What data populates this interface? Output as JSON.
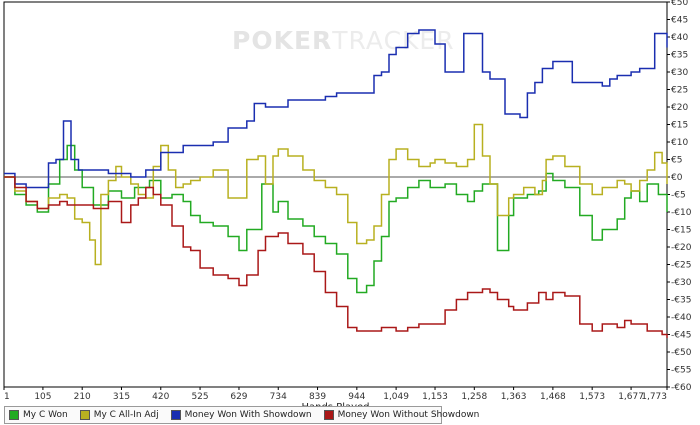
{
  "watermark": {
    "part1": "POKER",
    "part2": "TRACKER"
  },
  "chart_data": {
    "type": "line",
    "xlabel": "Hands Played",
    "ylabel": "",
    "x_ticks": [
      "1",
      "105",
      "210",
      "315",
      "420",
      "525",
      "629",
      "734",
      "839",
      "944",
      "1,049",
      "1,153",
      "1,258",
      "1,363",
      "1,468",
      "1,573",
      "1,677",
      "1,773"
    ],
    "xlim": [
      1,
      1773
    ],
    "ylim": [
      -60,
      50
    ],
    "y_tick_step": 5,
    "y_tick_prefix": "€",
    "zero_line": true,
    "grid": false,
    "legend_position": "bottom",
    "series": [
      {
        "name": "My C Won",
        "color": "#22aa22",
        "points": [
          [
            1,
            0
          ],
          [
            30,
            -5
          ],
          [
            60,
            -8
          ],
          [
            90,
            -10
          ],
          [
            120,
            -2
          ],
          [
            150,
            5
          ],
          [
            170,
            9
          ],
          [
            190,
            2
          ],
          [
            210,
            -3
          ],
          [
            240,
            -8
          ],
          [
            280,
            -4
          ],
          [
            315,
            -6
          ],
          [
            350,
            -3
          ],
          [
            390,
            -1
          ],
          [
            420,
            -6
          ],
          [
            450,
            -5
          ],
          [
            480,
            -7
          ],
          [
            500,
            -11
          ],
          [
            525,
            -13
          ],
          [
            560,
            -14
          ],
          [
            600,
            -17
          ],
          [
            629,
            -21
          ],
          [
            650,
            -15
          ],
          [
            690,
            -2
          ],
          [
            720,
            -10
          ],
          [
            734,
            -7
          ],
          [
            760,
            -12
          ],
          [
            800,
            -14
          ],
          [
            830,
            -17
          ],
          [
            860,
            -19
          ],
          [
            890,
            -22
          ],
          [
            920,
            -29
          ],
          [
            944,
            -33
          ],
          [
            970,
            -31
          ],
          [
            990,
            -24
          ],
          [
            1010,
            -17
          ],
          [
            1030,
            -7
          ],
          [
            1049,
            -6
          ],
          [
            1080,
            -3
          ],
          [
            1110,
            -1
          ],
          [
            1140,
            -3
          ],
          [
            1153,
            -3
          ],
          [
            1180,
            -2
          ],
          [
            1210,
            -5
          ],
          [
            1240,
            -7
          ],
          [
            1258,
            -4
          ],
          [
            1280,
            -2
          ],
          [
            1300,
            -2
          ],
          [
            1320,
            -21
          ],
          [
            1350,
            -11
          ],
          [
            1363,
            -6
          ],
          [
            1400,
            -5
          ],
          [
            1430,
            -4
          ],
          [
            1450,
            1
          ],
          [
            1468,
            -1
          ],
          [
            1500,
            -3
          ],
          [
            1540,
            -11
          ],
          [
            1573,
            -18
          ],
          [
            1600,
            -15
          ],
          [
            1640,
            -12
          ],
          [
            1660,
            -6
          ],
          [
            1677,
            -4
          ],
          [
            1700,
            -7
          ],
          [
            1720,
            -2
          ],
          [
            1750,
            -5
          ],
          [
            1773,
            -10
          ]
        ]
      },
      {
        "name": "My C All-In Adj",
        "color": "#b8b020",
        "points": [
          [
            1,
            0
          ],
          [
            30,
            -4
          ],
          [
            60,
            -7
          ],
          [
            90,
            -9
          ],
          [
            120,
            -6
          ],
          [
            150,
            -5
          ],
          [
            170,
            -6
          ],
          [
            190,
            -12
          ],
          [
            210,
            -13
          ],
          [
            230,
            -18
          ],
          [
            245,
            -25
          ],
          [
            260,
            -5
          ],
          [
            280,
            -1
          ],
          [
            300,
            3
          ],
          [
            315,
            0
          ],
          [
            340,
            -2
          ],
          [
            360,
            -5
          ],
          [
            380,
            -6
          ],
          [
            400,
            3
          ],
          [
            420,
            9
          ],
          [
            440,
            2
          ],
          [
            460,
            -3
          ],
          [
            480,
            -2
          ],
          [
            500,
            -1
          ],
          [
            525,
            0
          ],
          [
            560,
            2
          ],
          [
            600,
            -6
          ],
          [
            629,
            -6
          ],
          [
            650,
            5
          ],
          [
            680,
            6
          ],
          [
            700,
            -2
          ],
          [
            720,
            6
          ],
          [
            734,
            8
          ],
          [
            760,
            6
          ],
          [
            800,
            2
          ],
          [
            830,
            -1
          ],
          [
            860,
            -3
          ],
          [
            890,
            -5
          ],
          [
            920,
            -13
          ],
          [
            944,
            -19
          ],
          [
            970,
            -18
          ],
          [
            990,
            -14
          ],
          [
            1010,
            -5
          ],
          [
            1030,
            5
          ],
          [
            1049,
            8
          ],
          [
            1080,
            5
          ],
          [
            1110,
            3
          ],
          [
            1140,
            4
          ],
          [
            1153,
            5
          ],
          [
            1180,
            4
          ],
          [
            1210,
            3
          ],
          [
            1240,
            5
          ],
          [
            1258,
            15
          ],
          [
            1280,
            6
          ],
          [
            1300,
            -2
          ],
          [
            1320,
            -11
          ],
          [
            1350,
            -6
          ],
          [
            1363,
            -5
          ],
          [
            1390,
            -3
          ],
          [
            1420,
            -5
          ],
          [
            1440,
            -1
          ],
          [
            1450,
            5
          ],
          [
            1468,
            6
          ],
          [
            1500,
            3
          ],
          [
            1540,
            -2
          ],
          [
            1573,
            -5
          ],
          [
            1600,
            -3
          ],
          [
            1640,
            -1
          ],
          [
            1660,
            -2
          ],
          [
            1677,
            -4
          ],
          [
            1700,
            -1
          ],
          [
            1720,
            2
          ],
          [
            1740,
            7
          ],
          [
            1760,
            4
          ],
          [
            1773,
            -2
          ]
        ]
      },
      {
        "name": "Money Won With Showdown",
        "color": "#1a2eb0",
        "points": [
          [
            1,
            1
          ],
          [
            30,
            -2
          ],
          [
            60,
            -3
          ],
          [
            90,
            -3
          ],
          [
            120,
            4
          ],
          [
            140,
            5
          ],
          [
            160,
            16
          ],
          [
            180,
            5
          ],
          [
            200,
            2
          ],
          [
            220,
            2
          ],
          [
            240,
            2
          ],
          [
            280,
            1
          ],
          [
            315,
            1
          ],
          [
            340,
            0
          ],
          [
            380,
            2
          ],
          [
            420,
            7
          ],
          [
            450,
            7
          ],
          [
            480,
            9
          ],
          [
            500,
            9
          ],
          [
            525,
            9
          ],
          [
            560,
            10
          ],
          [
            600,
            14
          ],
          [
            629,
            14
          ],
          [
            650,
            16
          ],
          [
            670,
            21
          ],
          [
            690,
            21
          ],
          [
            700,
            20
          ],
          [
            734,
            20
          ],
          [
            760,
            22
          ],
          [
            800,
            22
          ],
          [
            830,
            22
          ],
          [
            860,
            23
          ],
          [
            890,
            24
          ],
          [
            920,
            24
          ],
          [
            944,
            24
          ],
          [
            970,
            24
          ],
          [
            990,
            29
          ],
          [
            1010,
            30
          ],
          [
            1030,
            35
          ],
          [
            1049,
            37
          ],
          [
            1080,
            41
          ],
          [
            1110,
            42
          ],
          [
            1130,
            42
          ],
          [
            1153,
            38
          ],
          [
            1180,
            30
          ],
          [
            1210,
            30
          ],
          [
            1230,
            41
          ],
          [
            1250,
            41
          ],
          [
            1258,
            41
          ],
          [
            1270,
            41
          ],
          [
            1280,
            30
          ],
          [
            1300,
            28
          ],
          [
            1320,
            28
          ],
          [
            1340,
            18
          ],
          [
            1363,
            18
          ],
          [
            1380,
            17
          ],
          [
            1400,
            24
          ],
          [
            1420,
            27
          ],
          [
            1440,
            31
          ],
          [
            1468,
            33
          ],
          [
            1500,
            33
          ],
          [
            1520,
            27
          ],
          [
            1540,
            27
          ],
          [
            1573,
            27
          ],
          [
            1600,
            26
          ],
          [
            1620,
            28
          ],
          [
            1640,
            29
          ],
          [
            1660,
            29
          ],
          [
            1677,
            30
          ],
          [
            1700,
            31
          ],
          [
            1720,
            31
          ],
          [
            1740,
            41
          ],
          [
            1755,
            41
          ],
          [
            1773,
            37
          ]
        ]
      },
      {
        "name": "Money Won Without Showdown",
        "color": "#aa1818",
        "points": [
          [
            1,
            0
          ],
          [
            30,
            -3
          ],
          [
            60,
            -7
          ],
          [
            90,
            -9
          ],
          [
            120,
            -8
          ],
          [
            150,
            -7
          ],
          [
            170,
            -8
          ],
          [
            190,
            -8
          ],
          [
            210,
            -8
          ],
          [
            240,
            -9
          ],
          [
            280,
            -7
          ],
          [
            315,
            -13
          ],
          [
            340,
            -8
          ],
          [
            360,
            -6
          ],
          [
            380,
            -3
          ],
          [
            400,
            -5
          ],
          [
            420,
            -8
          ],
          [
            450,
            -14
          ],
          [
            480,
            -20
          ],
          [
            500,
            -21
          ],
          [
            525,
            -26
          ],
          [
            560,
            -28
          ],
          [
            600,
            -29
          ],
          [
            629,
            -31
          ],
          [
            650,
            -28
          ],
          [
            680,
            -21
          ],
          [
            700,
            -17
          ],
          [
            720,
            -17
          ],
          [
            734,
            -16
          ],
          [
            760,
            -19
          ],
          [
            800,
            -22
          ],
          [
            830,
            -27
          ],
          [
            860,
            -33
          ],
          [
            890,
            -37
          ],
          [
            920,
            -43
          ],
          [
            944,
            -44
          ],
          [
            970,
            -44
          ],
          [
            990,
            -44
          ],
          [
            1010,
            -43
          ],
          [
            1030,
            -43
          ],
          [
            1049,
            -44
          ],
          [
            1080,
            -43
          ],
          [
            1110,
            -42
          ],
          [
            1140,
            -42
          ],
          [
            1153,
            -42
          ],
          [
            1180,
            -38
          ],
          [
            1210,
            -35
          ],
          [
            1240,
            -33
          ],
          [
            1258,
            -33
          ],
          [
            1280,
            -32
          ],
          [
            1300,
            -33
          ],
          [
            1320,
            -35
          ],
          [
            1350,
            -37
          ],
          [
            1363,
            -38
          ],
          [
            1400,
            -36
          ],
          [
            1430,
            -33
          ],
          [
            1450,
            -35
          ],
          [
            1468,
            -33
          ],
          [
            1500,
            -34
          ],
          [
            1540,
            -42
          ],
          [
            1573,
            -44
          ],
          [
            1600,
            -42
          ],
          [
            1640,
            -43
          ],
          [
            1660,
            -41
          ],
          [
            1677,
            -42
          ],
          [
            1700,
            -42
          ],
          [
            1720,
            -44
          ],
          [
            1740,
            -44
          ],
          [
            1760,
            -45
          ],
          [
            1773,
            -46
          ]
        ]
      }
    ]
  }
}
